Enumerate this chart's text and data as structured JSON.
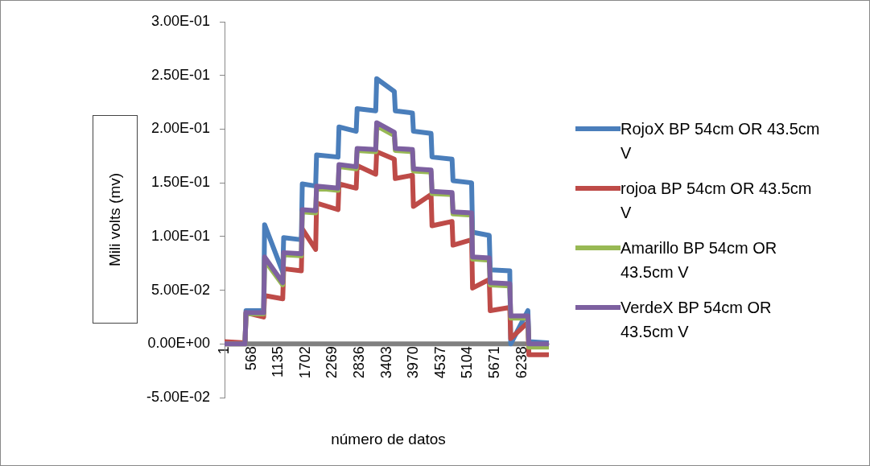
{
  "chart_data": {
    "type": "line",
    "xlabel": "número de datos",
    "ylabel": "Mili volts (mv)",
    "x": [
      1,
      430,
      450,
      820,
      840,
      1220,
      1240,
      1610,
      1630,
      1910,
      1930,
      2380,
      2400,
      2760,
      2780,
      3170,
      3190,
      3560,
      3580,
      3940,
      3960,
      4330,
      4350,
      4770,
      4790,
      5180,
      5200,
      5550,
      5570,
      5980,
      6000,
      6360,
      6380,
      6780
    ],
    "series": [
      {
        "color": "#808080",
        "x": [
          1,
          6300
        ],
        "values": [
          0,
          0
        ]
      },
      {
        "name": "RojoX BP 54cm OR 43.5cm V",
        "color": "#4a7ebb",
        "values": [
          0.001,
          0.001,
          0.031,
          0.031,
          0.111,
          0.067,
          0.099,
          0.097,
          0.149,
          0.147,
          0.176,
          0.174,
          0.202,
          0.198,
          0.219,
          0.217,
          0.247,
          0.235,
          0.217,
          0.215,
          0.198,
          0.196,
          0.174,
          0.172,
          0.152,
          0.15,
          0.104,
          0.101,
          0.069,
          0.068,
          0.0,
          0.031,
          0.002,
          0.001
        ]
      },
      {
        "name": "rojoa BP 54cm OR 43.5cm V",
        "color": "#be4b48",
        "values": [
          0.002,
          0.001,
          0.029,
          0.025,
          0.045,
          0.042,
          0.07,
          0.068,
          0.107,
          0.088,
          0.131,
          0.125,
          0.149,
          0.145,
          0.166,
          0.158,
          0.179,
          0.172,
          0.154,
          0.157,
          0.128,
          0.139,
          0.11,
          0.114,
          0.092,
          0.097,
          0.052,
          0.06,
          0.031,
          0.034,
          0.005,
          0.02,
          -0.01,
          -0.01
        ]
      },
      {
        "name": "Amarillo BP 54cm OR 43.5cm V",
        "color": "#98b954",
        "values": [
          0,
          0,
          0.028,
          0.028,
          0.078,
          0.055,
          0.083,
          0.082,
          0.123,
          0.122,
          0.145,
          0.143,
          0.165,
          0.163,
          0.18,
          0.179,
          0.203,
          0.194,
          0.18,
          0.179,
          0.161,
          0.16,
          0.14,
          0.139,
          0.121,
          0.12,
          0.079,
          0.078,
          0.055,
          0.054,
          0.024,
          0.024,
          -0.003,
          -0.003
        ]
      },
      {
        "name": "VerdeX BP 54cm OR 43.5cm V",
        "color": "#7d60a0",
        "values": [
          0,
          0,
          0.029,
          0.029,
          0.081,
          0.057,
          0.085,
          0.084,
          0.125,
          0.124,
          0.147,
          0.145,
          0.167,
          0.165,
          0.182,
          0.181,
          0.206,
          0.197,
          0.182,
          0.181,
          0.163,
          0.162,
          0.142,
          0.141,
          0.123,
          0.122,
          0.081,
          0.08,
          0.057,
          0.056,
          0.026,
          0.026,
          0,
          0
        ]
      }
    ],
    "xlim": [
      1,
      6800
    ],
    "xticks": [
      1,
      568,
      1135,
      1702,
      2269,
      2836,
      3403,
      3970,
      4537,
      5104,
      5671,
      6238
    ],
    "ylim": [
      -0.05,
      0.3
    ],
    "yticks": [
      {
        "value": -0.05,
        "label": "-5.00E-02"
      },
      {
        "value": 0,
        "label": "0.00E+00"
      },
      {
        "value": 0.05,
        "label": "5.00E-02"
      },
      {
        "value": 0.1,
        "label": "1.00E-01"
      },
      {
        "value": 0.15,
        "label": "1.50E-01"
      },
      {
        "value": 0.2,
        "label": "2.00E-01"
      },
      {
        "value": 0.25,
        "label": "2.50E-01"
      },
      {
        "value": 0.3,
        "label": "3.00E-01"
      }
    ],
    "grid": false,
    "legend": "right",
    "marker": "none",
    "line_style": "solid"
  }
}
